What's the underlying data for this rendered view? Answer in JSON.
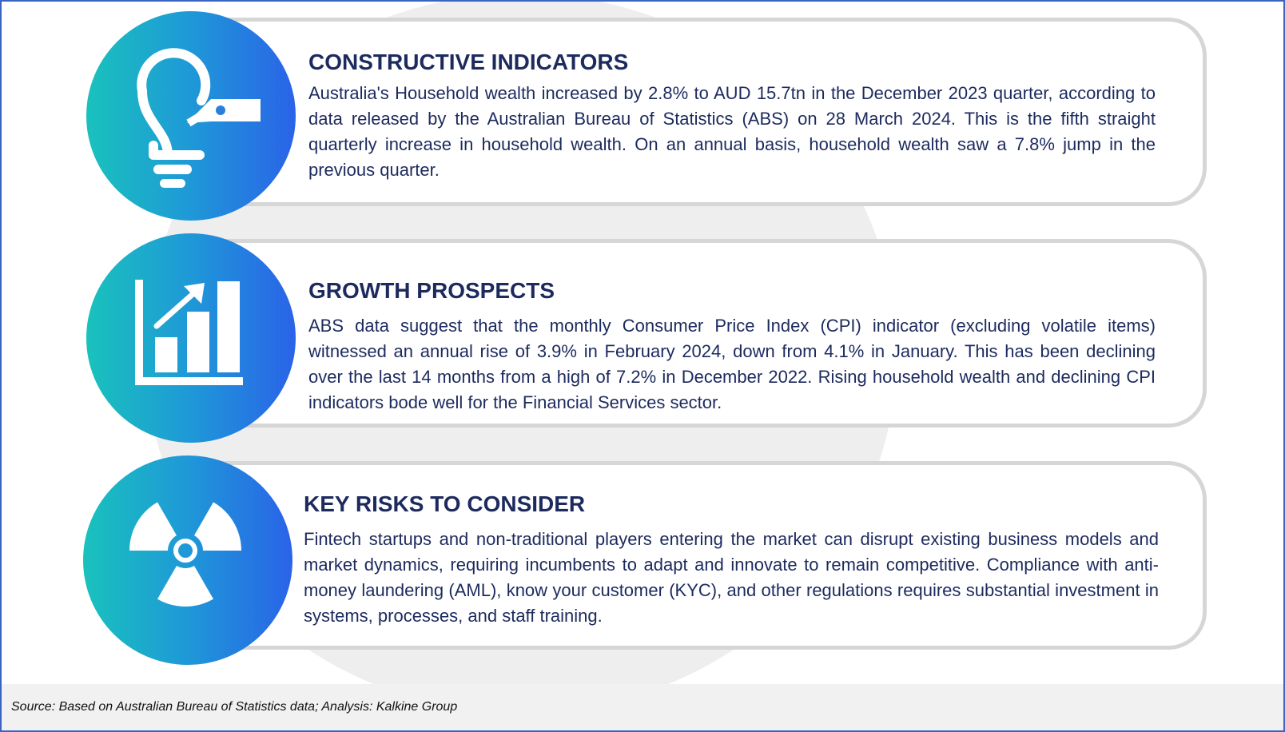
{
  "sections": [
    {
      "title": "CONSTRUCTIVE INDICATORS",
      "text": "Australia's Household wealth increased by 2.8% to AUD 15.7tn in the December 2023 quarter, according to data released by the Australian Bureau of Statistics (ABS) on 28 March 2024. This is the fifth straight quarterly increase in household wealth. On an annual basis, household wealth saw a 7.8% jump in the previous quarter.",
      "icon": "lightbulb-icon"
    },
    {
      "title": "GROWTH PROSPECTS",
      "text": "ABS data suggest that the monthly Consumer Price Index (CPI) indicator (excluding volatile items) witnessed an annual rise of 3.9% in February 2024, down from 4.1% in January. This has been declining over the last 14 months from a high of 7.2% in December 2022. Rising household wealth and declining CPI indicators bode well for the Financial Services sector.",
      "icon": "growth-chart-icon"
    },
    {
      "title": "KEY RISKS TO CONSIDER",
      "text": "Fintech startups and non-traditional players entering the market can disrupt existing business models and market dynamics, requiring incumbents to adapt and innovate to remain competitive. Compliance with anti-money laundering (AML), know your customer (KYC), and other regulations requires substantial investment in systems, processes, and staff training.",
      "icon": "radiation-hazard-icon"
    }
  ],
  "source": "Source: Based on Australian Bureau of Statistics data; Analysis: Kalkine Group",
  "colors": {
    "title": "#1c2a5e",
    "badge_start": "#19c2bc",
    "badge_end": "#2a63e8",
    "frame_border": "#3b63c4"
  }
}
